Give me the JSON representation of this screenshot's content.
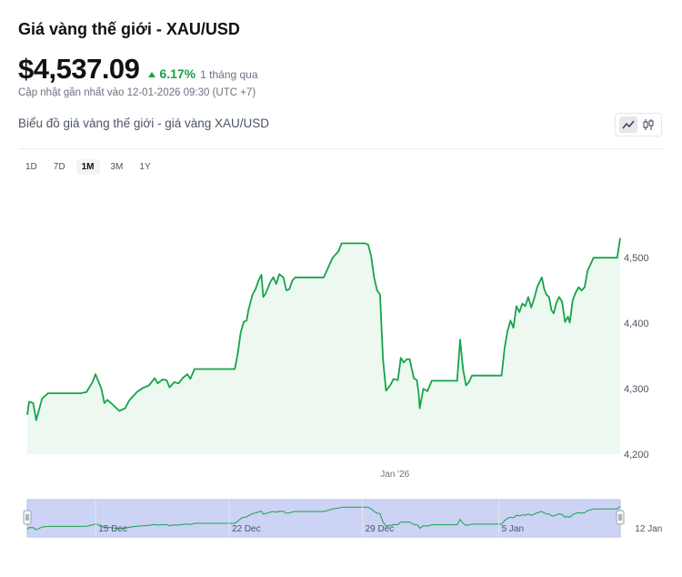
{
  "header": {
    "title": "Giá vàng thế giới - XAU/USD",
    "price": "$4,537.09",
    "change_pct": "6.17%",
    "change_period": "1 tháng qua",
    "updated": "Cập nhật gần nhất vào 12-01-2026 09:30 (UTC +7)"
  },
  "chart_heading": "Biểu đồ giá vàng thế giới - giá vàng XAU/USD",
  "toolbar": {
    "line_icon": "line-chart-icon",
    "candle_icon": "candlestick-icon"
  },
  "ranges": [
    {
      "label": "1D",
      "active": false
    },
    {
      "label": "7D",
      "active": false
    },
    {
      "label": "1M",
      "active": true
    },
    {
      "label": "3M",
      "active": false
    },
    {
      "label": "1Y",
      "active": false
    }
  ],
  "colors": {
    "line": "#16a34a",
    "area": "#ecf8f0",
    "navigator": "#ccd3f5",
    "accent": "#16a34a"
  },
  "chart_data": {
    "type": "area",
    "title": "",
    "xlabel": "",
    "ylabel": "",
    "ylim": [
      4200,
      4535
    ],
    "y_ticks": [
      "4,200",
      "4,300",
      "4,400",
      "4,500"
    ],
    "x_ticks": [
      {
        "label": "Jan '26",
        "at": 0.62
      }
    ],
    "navigator_ticks": [
      {
        "label": "15 Dec",
        "at": 0.12
      },
      {
        "label": "22 Dec",
        "at": 0.345
      },
      {
        "label": "29 Dec",
        "at": 0.57
      },
      {
        "label": "5 Jan",
        "at": 0.8
      },
      {
        "label": "12 Jan",
        "at": 1.025
      }
    ],
    "grid": false,
    "series": [
      {
        "points": [
          [
            0,
            4260
          ],
          [
            0.003,
            4280
          ],
          [
            0.01,
            4278
          ],
          [
            0.015,
            4252
          ],
          [
            0.025,
            4285
          ],
          [
            0.035,
            4293
          ],
          [
            0.09,
            4293
          ],
          [
            0.1,
            4295
          ],
          [
            0.11,
            4310
          ],
          [
            0.115,
            4322
          ],
          [
            0.125,
            4300
          ],
          [
            0.13,
            4278
          ],
          [
            0.135,
            4283
          ],
          [
            0.145,
            4275
          ],
          [
            0.155,
            4266
          ],
          [
            0.165,
            4270
          ],
          [
            0.172,
            4282
          ],
          [
            0.185,
            4295
          ],
          [
            0.195,
            4301
          ],
          [
            0.205,
            4305
          ],
          [
            0.215,
            4316
          ],
          [
            0.22,
            4308
          ],
          [
            0.228,
            4314
          ],
          [
            0.235,
            4313
          ],
          [
            0.24,
            4302
          ],
          [
            0.248,
            4310
          ],
          [
            0.255,
            4308
          ],
          [
            0.262,
            4316
          ],
          [
            0.27,
            4322
          ],
          [
            0.275,
            4315
          ],
          [
            0.282,
            4330
          ],
          [
            0.29,
            4330
          ],
          [
            0.31,
            4330
          ],
          [
            0.32,
            4330
          ],
          [
            0.33,
            4330
          ],
          [
            0.34,
            4330
          ],
          [
            0.35,
            4330
          ],
          [
            0.355,
            4354
          ],
          [
            0.36,
            4386
          ],
          [
            0.365,
            4402
          ],
          [
            0.37,
            4404
          ],
          [
            0.373,
            4420
          ],
          [
            0.38,
            4444
          ],
          [
            0.385,
            4452
          ],
          [
            0.39,
            4465
          ],
          [
            0.395,
            4474
          ],
          [
            0.398,
            4440
          ],
          [
            0.402,
            4445
          ],
          [
            0.41,
            4463
          ],
          [
            0.415,
            4470
          ],
          [
            0.42,
            4460
          ],
          [
            0.425,
            4475
          ],
          [
            0.432,
            4470
          ],
          [
            0.437,
            4450
          ],
          [
            0.442,
            4452
          ],
          [
            0.447,
            4465
          ],
          [
            0.452,
            4470
          ],
          [
            0.5,
            4470
          ],
          [
            0.505,
            4480
          ],
          [
            0.51,
            4490
          ],
          [
            0.515,
            4500
          ],
          [
            0.525,
            4510
          ],
          [
            0.53,
            4522
          ],
          [
            0.57,
            4522
          ],
          [
            0.575,
            4520
          ],
          [
            0.58,
            4502
          ],
          [
            0.585,
            4470
          ],
          [
            0.59,
            4450
          ],
          [
            0.595,
            4444
          ],
          [
            0.6,
            4345
          ],
          [
            0.605,
            4297
          ],
          [
            0.612,
            4305
          ],
          [
            0.618,
            4315
          ],
          [
            0.625,
            4313
          ],
          [
            0.63,
            4347
          ],
          [
            0.635,
            4340
          ],
          [
            0.64,
            4345
          ],
          [
            0.645,
            4345
          ],
          [
            0.652,
            4316
          ],
          [
            0.657,
            4313
          ],
          [
            0.66,
            4295
          ],
          [
            0.662,
            4270
          ],
          [
            0.668,
            4300
          ],
          [
            0.675,
            4296
          ],
          [
            0.682,
            4312
          ],
          [
            0.69,
            4312
          ],
          [
            0.71,
            4312
          ],
          [
            0.72,
            4312
          ],
          [
            0.725,
            4312
          ],
          [
            0.73,
            4375
          ],
          [
            0.735,
            4330
          ],
          [
            0.74,
            4305
          ],
          [
            0.745,
            4310
          ],
          [
            0.75,
            4320
          ],
          [
            0.765,
            4320
          ],
          [
            0.79,
            4320
          ],
          [
            0.8,
            4320
          ],
          [
            0.805,
            4362
          ],
          [
            0.81,
            4388
          ],
          [
            0.815,
            4404
          ],
          [
            0.82,
            4393
          ],
          [
            0.825,
            4426
          ],
          [
            0.83,
            4417
          ],
          [
            0.835,
            4430
          ],
          [
            0.84,
            4426
          ],
          [
            0.845,
            4440
          ],
          [
            0.85,
            4424
          ],
          [
            0.855,
            4438
          ],
          [
            0.86,
            4455
          ],
          [
            0.865,
            4465
          ],
          [
            0.868,
            4470
          ],
          [
            0.872,
            4452
          ],
          [
            0.876,
            4443
          ],
          [
            0.88,
            4440
          ],
          [
            0.884,
            4420
          ],
          [
            0.888,
            4415
          ],
          [
            0.892,
            4430
          ],
          [
            0.897,
            4440
          ],
          [
            0.902,
            4433
          ],
          [
            0.907,
            4402
          ],
          [
            0.912,
            4410
          ],
          [
            0.915,
            4401
          ],
          [
            0.92,
            4435
          ],
          [
            0.925,
            4447
          ],
          [
            0.93,
            4455
          ],
          [
            0.935,
            4450
          ],
          [
            0.94,
            4455
          ],
          [
            0.945,
            4480
          ],
          [
            0.955,
            4500
          ],
          [
            0.96,
            4500
          ],
          [
            0.995,
            4500
          ],
          [
            1.0,
            4530
          ]
        ]
      }
    ]
  }
}
